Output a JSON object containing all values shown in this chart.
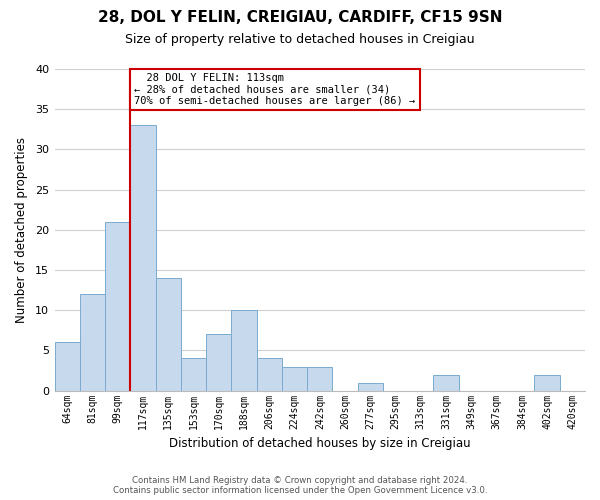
{
  "title": "28, DOL Y FELIN, CREIGIAU, CARDIFF, CF15 9SN",
  "subtitle": "Size of property relative to detached houses in Creigiau",
  "xlabel": "Distribution of detached houses by size in Creigiau",
  "ylabel": "Number of detached properties",
  "footer_line1": "Contains HM Land Registry data © Crown copyright and database right 2024.",
  "footer_line2": "Contains public sector information licensed under the Open Government Licence v3.0.",
  "bin_labels": [
    "64sqm",
    "81sqm",
    "99sqm",
    "117sqm",
    "135sqm",
    "153sqm",
    "170sqm",
    "188sqm",
    "206sqm",
    "224sqm",
    "242sqm",
    "260sqm",
    "277sqm",
    "295sqm",
    "313sqm",
    "331sqm",
    "349sqm",
    "367sqm",
    "384sqm",
    "402sqm",
    "420sqm"
  ],
  "bar_values": [
    6,
    12,
    21,
    33,
    14,
    4,
    7,
    10,
    4,
    3,
    3,
    0,
    1,
    0,
    0,
    2,
    0,
    0,
    0,
    2,
    0
  ],
  "bar_color": "#c7d9ed",
  "bar_edge_color": "#7aaad0",
  "vline_color": "#cc0000",
  "annotation_title": "28 DOL Y FELIN: 113sqm",
  "annotation_line1": "← 28% of detached houses are smaller (34)",
  "annotation_line2": "70% of semi-detached houses are larger (86) →",
  "annotation_box_color": "#ffffff",
  "annotation_box_edge": "#cc0000",
  "ylim": [
    0,
    40
  ],
  "yticks": [
    0,
    5,
    10,
    15,
    20,
    25,
    30,
    35,
    40
  ],
  "background_color": "#ffffff",
  "grid_color": "#d0d0d0"
}
